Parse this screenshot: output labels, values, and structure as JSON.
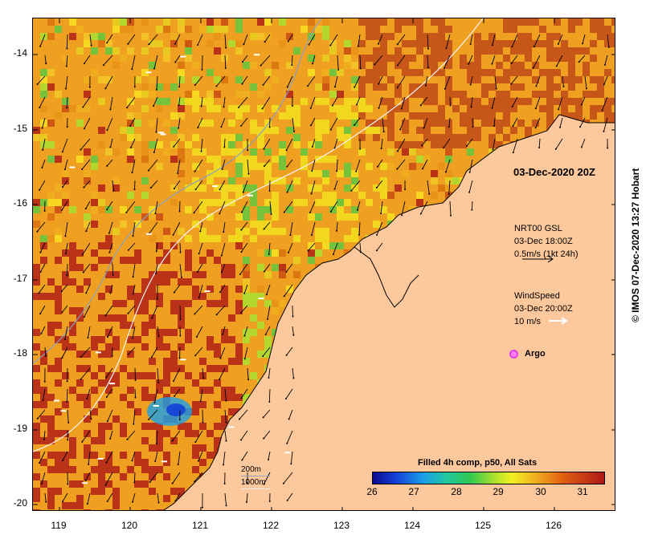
{
  "map": {
    "timestamp": "03-Dec-2020 20Z",
    "y_axis_labels": [
      "-14",
      "-15",
      "-16",
      "-17",
      "-18",
      "-19",
      "-20"
    ],
    "x_axis_labels": [
      "119",
      "120",
      "121",
      "122",
      "123",
      "124",
      "125",
      "126"
    ],
    "lat_range": [
      -20.1,
      -13.5
    ],
    "lon_range": [
      118.65,
      126.7
    ],
    "land_color": "#fdc89b"
  },
  "legend": {
    "gsl_title": "NRT00 GSL",
    "gsl_time": "03-Dec 18:00Z",
    "gsl_scale": "0.5m/s (1kt 24h)",
    "wind_title": "WindSpeed",
    "wind_time": "03-Dec 20:00Z",
    "wind_scale": "10 m/s",
    "argo_label": "Argo",
    "depth_200": "200m",
    "depth_1000": "1000m"
  },
  "colorbar": {
    "title": "Filled 4h comp, p50, All Sats",
    "ticks": [
      "26",
      "27",
      "28",
      "29",
      "30",
      "31"
    ]
  },
  "credit": "© IMOS 07-Dec-2020 13:27 Hobart"
}
